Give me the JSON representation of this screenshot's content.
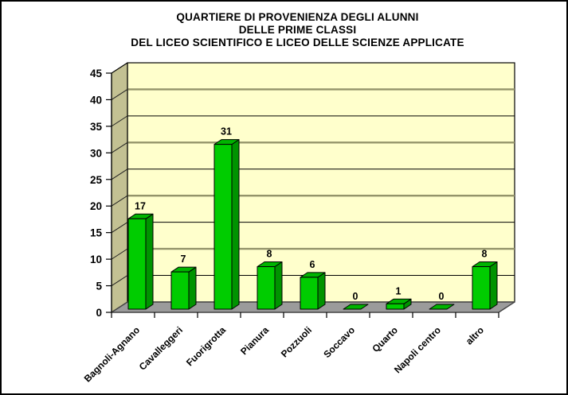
{
  "window": {
    "background": "#FFFFFF",
    "border_color": "#000000"
  },
  "chart_data": {
    "type": "bar",
    "style": "3d-column",
    "title_lines": [
      "QUARTIERE DI PROVENIENZA DEGLI ALUNNI",
      "DELLE PRIME CLASSI",
      "DEL LICEO SCIENTIFICO E LICEO DELLE SCIENZE APPLICATE"
    ],
    "categories": [
      "Bagnoli-Agnano",
      "Cavalleggeri",
      "Fuorigrotta",
      "Pianura",
      "Pozzuoli",
      "Soccavo",
      "Quarto",
      "Napoli centro",
      "altro"
    ],
    "values": [
      17,
      7,
      31,
      8,
      6,
      0,
      1,
      0,
      8
    ],
    "value_axis": {
      "min": 0,
      "max": 45,
      "step": 5
    },
    "yticks": [
      0,
      5,
      10,
      15,
      20,
      25,
      30,
      35,
      40,
      45
    ],
    "xlabel": "",
    "ylabel": "",
    "legend": "none",
    "grid": true,
    "colors": {
      "title": "#000000",
      "bar_front": "#00CC00",
      "bar_top": "#00B400",
      "bar_side": "#009300",
      "bar_outline": "#000000",
      "back_wall": "#FFFFCC",
      "side_wall": "#C3C193",
      "floor": "#9B9B9B",
      "floor_edge": "#444444",
      "gridline_major": "#94946A",
      "gridline_minor": "#000000",
      "wall_diagonal": "#222222",
      "axis": "#000000",
      "labels": "#000000"
    }
  }
}
